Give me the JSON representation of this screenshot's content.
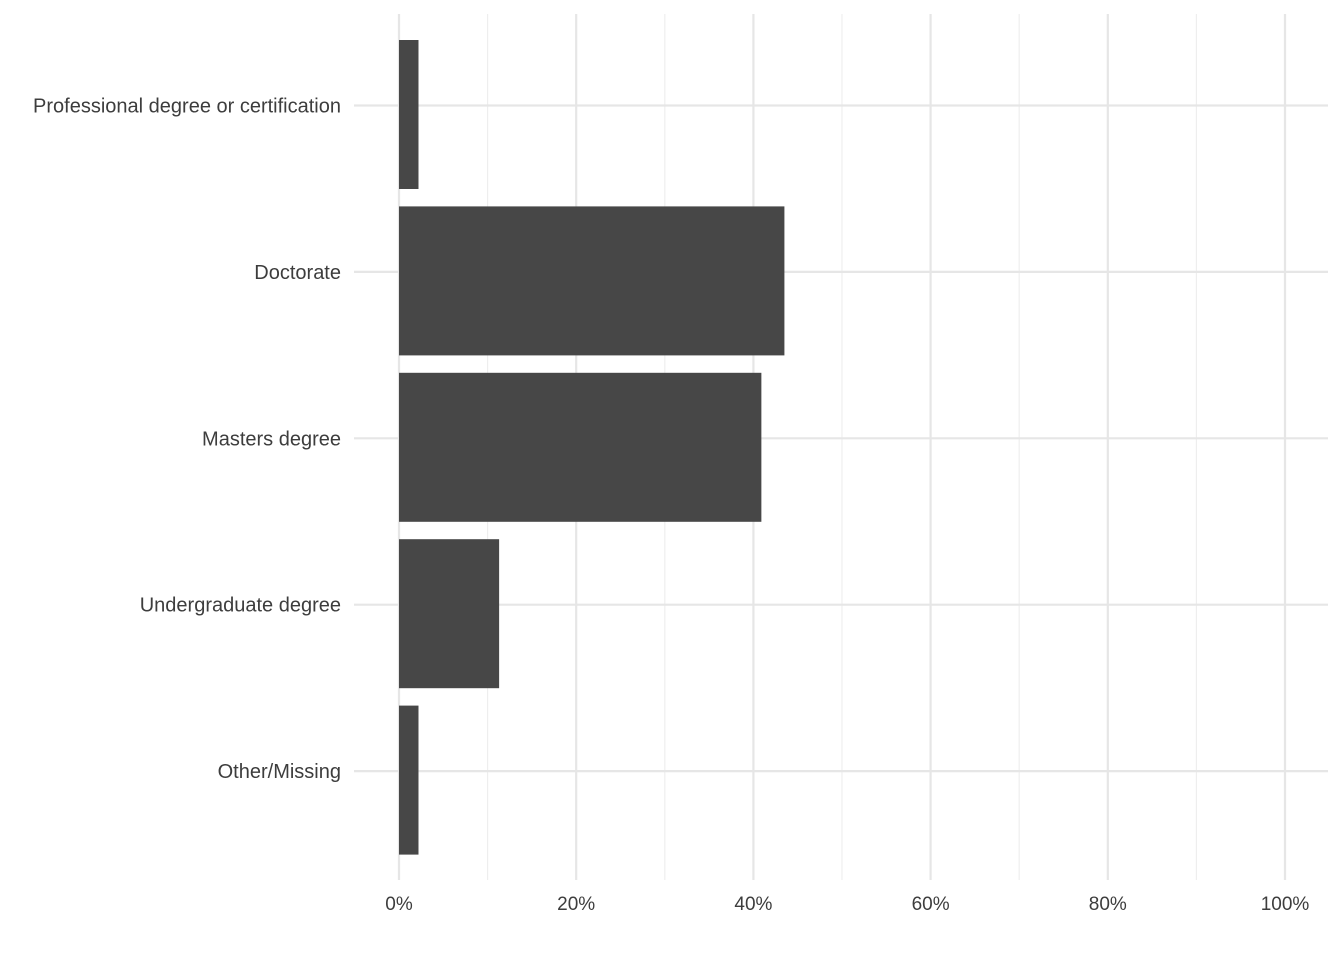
{
  "chart_data": {
    "type": "bar",
    "orientation": "horizontal",
    "categories": [
      "Professional degree or certification",
      "Doctorate",
      "Masters degree",
      "Undergraduate degree",
      "Other/Missing"
    ],
    "values": [
      0.022,
      0.435,
      0.409,
      0.113,
      0.022
    ],
    "title": "",
    "xlabel": "",
    "ylabel": "",
    "xlim": [
      0,
      1
    ],
    "x_ticks": [
      0,
      0.2,
      0.4,
      0.6,
      0.8,
      1.0
    ],
    "x_tick_labels": [
      "0%",
      "20%",
      "40%",
      "60%",
      "80%",
      "100%"
    ],
    "bar_color": "#474747",
    "grid": true,
    "legend": "none"
  }
}
